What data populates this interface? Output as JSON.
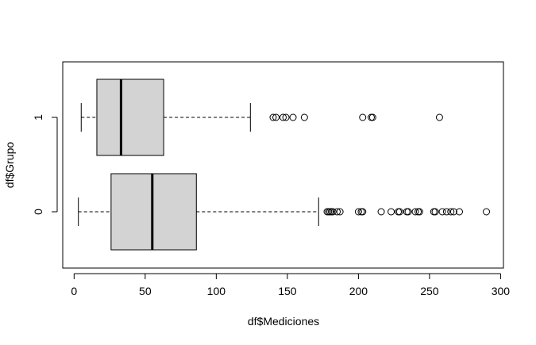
{
  "chart_data": {
    "type": "boxplot",
    "orientation": "horizontal",
    "xlabel": "df$Mediciones",
    "ylabel": "df$Grupo",
    "xlim": [
      -8,
      302
    ],
    "x_ticks": [
      0,
      50,
      100,
      150,
      200,
      250,
      300
    ],
    "categories": [
      "0",
      "1"
    ],
    "grid": false,
    "box_color": "#d3d3d3",
    "groups": [
      {
        "name": "0",
        "whisker_low": 3,
        "q1": 26,
        "median": 55,
        "q3": 86,
        "whisker_high": 172,
        "outliers": [
          178,
          179,
          180,
          181,
          182,
          185,
          187,
          200,
          202,
          203,
          216,
          223,
          228,
          229,
          234,
          235,
          240,
          242,
          243,
          253,
          254,
          259,
          262,
          265,
          267,
          271,
          290
        ]
      },
      {
        "name": "1",
        "whisker_low": 5,
        "q1": 16,
        "median": 33,
        "q3": 63,
        "whisker_high": 124,
        "outliers": [
          140,
          142,
          147,
          149,
          154,
          162,
          203,
          209,
          210,
          257
        ]
      }
    ]
  }
}
